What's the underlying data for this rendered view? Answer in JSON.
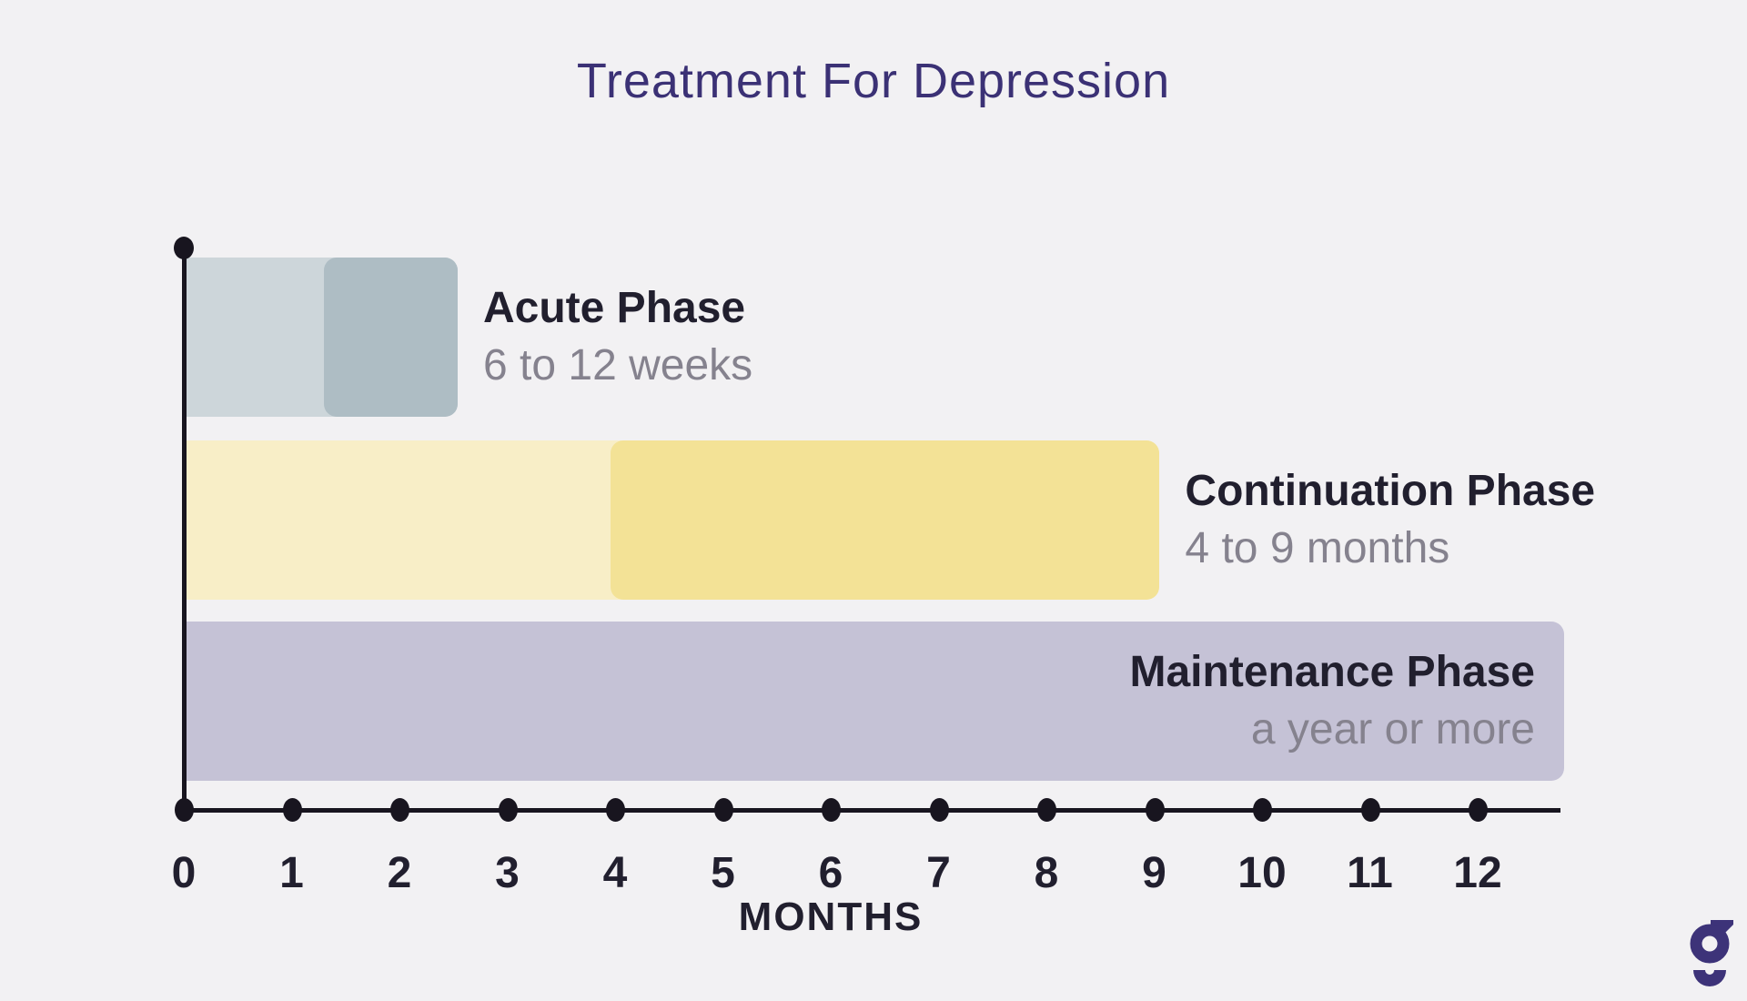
{
  "page": {
    "background": "#f2f1f3"
  },
  "header": {
    "title": "Treatment For Depression",
    "title_color": "#3b3175"
  },
  "chart_data": {
    "type": "bar",
    "orientation": "horizontal",
    "title": "Treatment For Depression",
    "xlabel": "MONTHS",
    "x_ticks": [
      0,
      1,
      2,
      3,
      4,
      5,
      6,
      7,
      8,
      9,
      10,
      11,
      12
    ],
    "xlim": [
      0,
      12.8
    ],
    "grid": false,
    "legend": false,
    "axis_color": "#18151f",
    "tick_label_color": "#211f2e",
    "phase_name_color": "#211f2e",
    "phase_duration_color": "#85828e",
    "phases": [
      {
        "name": "Acute Phase",
        "duration": "6 to 12 weeks",
        "base_start": 0,
        "base_end": 2.54,
        "base_color": "#cdd6da",
        "highlight_start": 1.3,
        "highlight_end": 2.54,
        "highlight_color": "#aebdc4",
        "label_placement": "right-of-bar"
      },
      {
        "name": "Continuation Phase",
        "duration": "4 to 9 months",
        "base_start": 0,
        "base_end": 9.05,
        "base_color": "#f8eec7",
        "highlight_start": 3.96,
        "highlight_end": 9.05,
        "highlight_color": "#f3e296",
        "label_placement": "right-of-bar"
      },
      {
        "name": "Maintenance Phase",
        "duration": "a year or more",
        "base_start": 0,
        "base_end": 12.8,
        "base_color": "#c5c2d6",
        "highlight_start": null,
        "highlight_end": null,
        "highlight_color": null,
        "label_placement": "inside-right"
      }
    ]
  },
  "logo": {
    "glyph": "g",
    "color": "#3d3379"
  }
}
